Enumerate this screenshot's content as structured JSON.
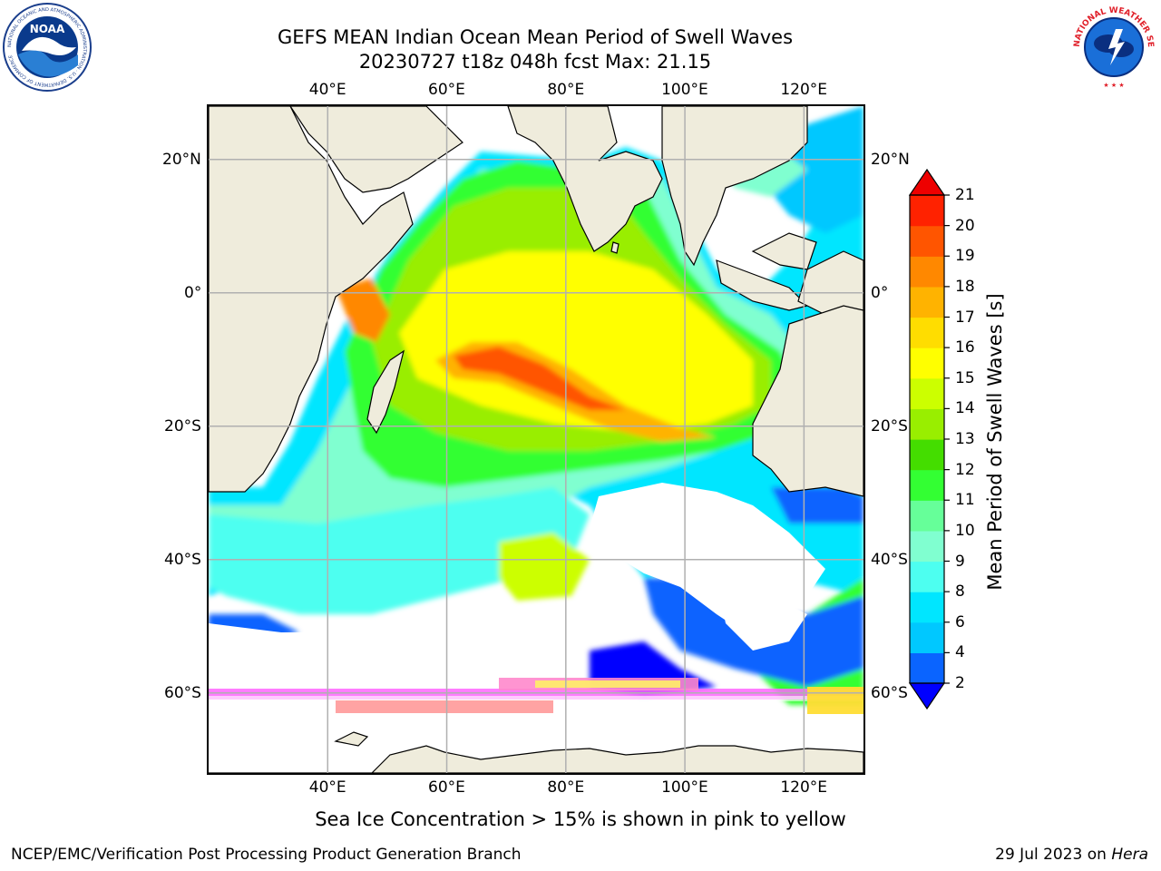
{
  "title_line1": "GEFS MEAN Indian Ocean Mean Period of Swell Waves",
  "title_line2": "20230727 t18z 048h fcst   Max: 21.15",
  "logos": {
    "left": {
      "name": "noaa-logo",
      "text": "NOAA",
      "ring_text": "NATIONAL OCEANIC AND ATMOSPHERIC ADMINISTRATION · U.S. DEPARTMENT OF COMMERCE"
    },
    "right": {
      "name": "national-weather-service-logo",
      "ring_text": "NATIONAL WEATHER SERVICE"
    }
  },
  "map": {
    "projection": "lat-lon",
    "lon_range": [
      20,
      130
    ],
    "lat_range": [
      -72,
      28
    ],
    "lon_ticks": [
      {
        "value": 40,
        "label": "40°E"
      },
      {
        "value": 60,
        "label": "60°E"
      },
      {
        "value": 80,
        "label": "80°E"
      },
      {
        "value": 100,
        "label": "100°E"
      },
      {
        "value": 120,
        "label": "120°E"
      }
    ],
    "lat_ticks": [
      {
        "value": 20,
        "label": "20°N"
      },
      {
        "value": 0,
        "label": "0°"
      },
      {
        "value": -20,
        "label": "20°S"
      },
      {
        "value": -40,
        "label": "40°S"
      },
      {
        "value": -60,
        "label": "60°S"
      }
    ],
    "grid": true,
    "land_color": "#efecdc",
    "coastline_color": "#000000",
    "gridline_color": "#b0b0b0"
  },
  "colorbar": {
    "label": "Mean Period of Swell Waves [s]",
    "tick_labels": [
      "2",
      "4",
      "6",
      "8",
      "9",
      "10",
      "11",
      "12",
      "13",
      "14",
      "15",
      "16",
      "17",
      "18",
      "19",
      "20",
      "21"
    ],
    "colors": [
      "#0000ff",
      "#0a64ff",
      "#00c8ff",
      "#00e6ff",
      "#4dfff0",
      "#80ffd0",
      "#66ff99",
      "#33ff33",
      "#44dd00",
      "#99ee00",
      "#ccff00",
      "#ffff00",
      "#ffdd00",
      "#ffb300",
      "#ff8800",
      "#ff5500",
      "#ff2200",
      "#ee0000"
    ],
    "extend": "both"
  },
  "footnote": "Sea Ice Concentration > 15% is shown in pink to yellow",
  "credit_left": "NCEP/EMC/Verification Post Processing Product Generation Branch",
  "credit_right_text": "29 Jul 2023 on ",
  "credit_right_host": "Hera"
}
